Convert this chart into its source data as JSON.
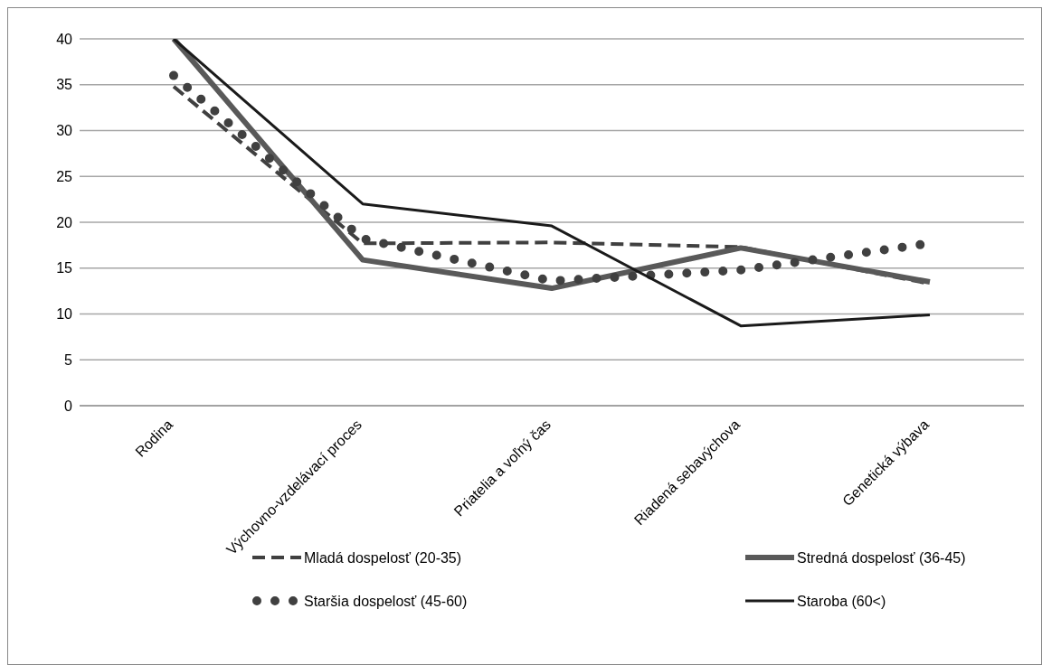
{
  "chart_data": {
    "type": "line",
    "categories": [
      "Rodina",
      "Výchovno-vzdelávací proces",
      "Priatelia a voľný čas",
      "Riadená sebavýchova",
      "Genetická výbava"
    ],
    "series": [
      {
        "name": "Mladá dospelosť (20-35)",
        "color": "#404040",
        "line_style": "dashed",
        "values": [
          34.8,
          17.7,
          17.8,
          17.3,
          13.3
        ]
      },
      {
        "name": "Stredná dospelosť (36-45)",
        "color": "#595959",
        "line_style": "solid",
        "values": [
          40,
          15.9,
          12.8,
          17.2,
          13.5
        ]
      },
      {
        "name": "Staršia dospelosť (45-60)",
        "color": "#404040",
        "line_style": "dotted",
        "values": [
          36,
          18.2,
          13.6,
          14.8,
          17.7
        ]
      },
      {
        "name": "Staroba (60<)",
        "color": "#1a1a1a",
        "line_style": "solid",
        "values": [
          40,
          22,
          19.6,
          8.7,
          9.9
        ]
      }
    ],
    "ylim": [
      0,
      40
    ],
    "yticks": [
      0,
      5,
      10,
      15,
      20,
      25,
      30,
      35,
      40
    ],
    "grid": "y",
    "legend": "bottom",
    "marker": "none"
  }
}
